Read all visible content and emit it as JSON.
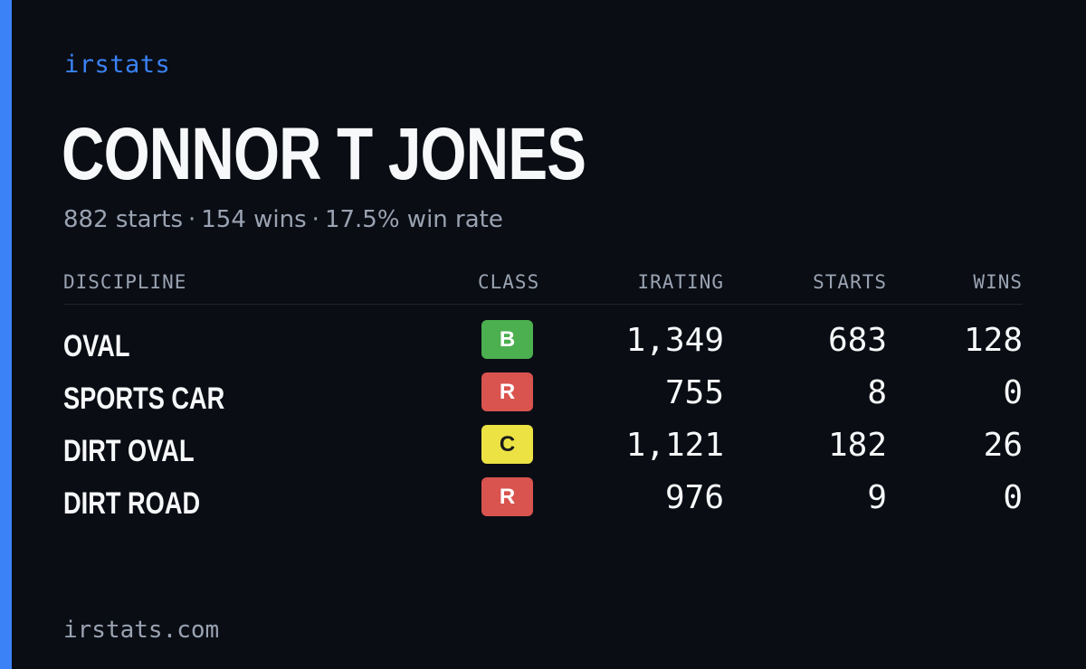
{
  "brand": "irstats",
  "player": {
    "name": "CONNOR T JONES",
    "starts": "882 starts",
    "wins": "154 wins",
    "win_rate": "17.5% win rate",
    "separator": "·"
  },
  "table": {
    "headers": {
      "discipline": "DISCIPLINE",
      "class": "CLASS",
      "irating": "IRATING",
      "starts": "STARTS",
      "wins": "WINS"
    },
    "rows": [
      {
        "discipline": "OVAL",
        "class": "B",
        "class_bg": "#4caf50",
        "class_fg": "#ffffff",
        "irating": "1,349",
        "starts": "683",
        "wins": "128"
      },
      {
        "discipline": "SPORTS CAR",
        "class": "R",
        "class_bg": "#d9534f",
        "class_fg": "#ffffff",
        "irating": "755",
        "starts": "8",
        "wins": "0"
      },
      {
        "discipline": "DIRT OVAL",
        "class": "C",
        "class_bg": "#ece244",
        "class_fg": "#1a1a1a",
        "irating": "1,121",
        "starts": "182",
        "wins": "26"
      },
      {
        "discipline": "DIRT ROAD",
        "class": "R",
        "class_bg": "#d9534f",
        "class_fg": "#ffffff",
        "irating": "976",
        "starts": "9",
        "wins": "0"
      }
    ]
  },
  "footer": "irstats.com",
  "colors": {
    "background": "#0a0d14",
    "accent": "#3b82f6",
    "muted_text": "#9aa3b2",
    "primary_text": "#f7f8fa"
  }
}
